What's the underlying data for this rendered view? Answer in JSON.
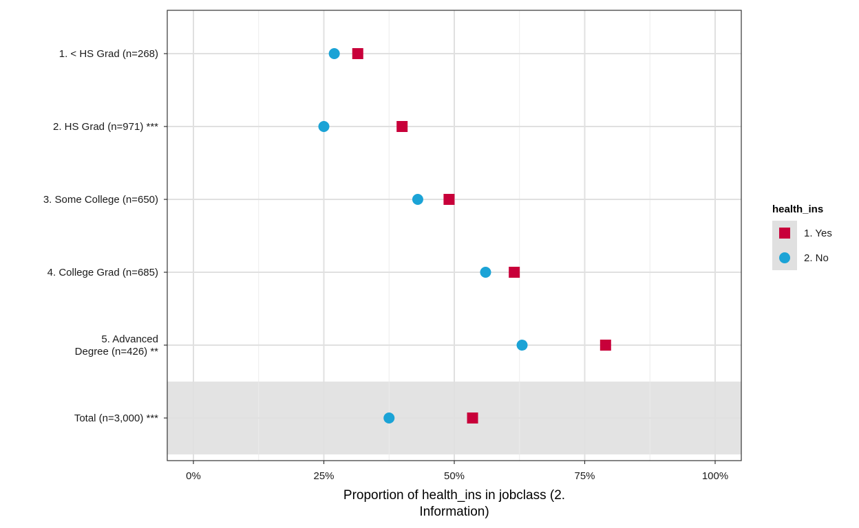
{
  "chart_data": {
    "type": "scatter",
    "xlabel_lines": [
      "Proportion of health_ins in jobclass (2.",
      "Information)"
    ],
    "xlim": [
      -0.05,
      1.05
    ],
    "x_ticks": [
      0,
      0.25,
      0.5,
      0.75,
      1.0
    ],
    "x_tick_labels": [
      "0%",
      "25%",
      "50%",
      "75%",
      "100%"
    ],
    "categories": [
      [
        "1. < HS Grad (n=268)"
      ],
      [
        "2. HS Grad (n=971) ***"
      ],
      [
        "3. Some College (n=650)"
      ],
      [
        "4. College Grad (n=685)"
      ],
      [
        "5. Advanced",
        "Degree (n=426) **"
      ],
      [
        "Total (n=3,000) ***"
      ]
    ],
    "highlight_category_index": 5,
    "grid": true,
    "legend": {
      "title": "health_ins",
      "position": "right"
    },
    "series": [
      {
        "name": "1. Yes",
        "shape": "square",
        "color": "#C8003A",
        "values": [
          0.315,
          0.4,
          0.49,
          0.615,
          0.79,
          0.535
        ]
      },
      {
        "name": "2. No",
        "shape": "circle",
        "color": "#1BA3D6",
        "values": [
          0.27,
          0.25,
          0.43,
          0.56,
          0.63,
          0.375
        ]
      }
    ]
  }
}
